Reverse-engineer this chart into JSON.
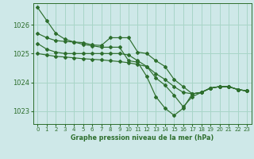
{
  "background_color": "#cee8e8",
  "grid_color": "#a8d5c8",
  "line_color": "#2d6e2d",
  "title": "Graphe pression niveau de la mer (hPa)",
  "xlim": [
    -0.5,
    23.5
  ],
  "ylim": [
    1022.55,
    1026.75
  ],
  "yticks": [
    1023,
    1024,
    1025,
    1026
  ],
  "xticks": [
    0,
    1,
    2,
    3,
    4,
    5,
    6,
    7,
    8,
    9,
    10,
    11,
    12,
    13,
    14,
    15,
    16,
    17,
    18,
    19,
    20,
    21,
    22,
    23
  ],
  "series": [
    [
      1026.6,
      1026.15,
      1025.7,
      1025.5,
      1025.4,
      1025.32,
      1025.27,
      1025.22,
      1025.22,
      1025.22,
      1024.75,
      1024.7,
      1024.2,
      1023.5,
      1023.1,
      1022.85,
      1023.1,
      1023.6,
      1023.65,
      1023.8,
      1023.85,
      1023.85,
      1023.75,
      1023.7
    ],
    [
      1025.7,
      1025.55,
      1025.45,
      1025.42,
      1025.4,
      1025.38,
      1025.3,
      1025.28,
      1025.55,
      1025.55,
      1025.55,
      1025.05,
      1025.0,
      1024.75,
      1024.55,
      1024.1,
      1023.85,
      1023.6,
      1023.65,
      1023.8,
      1023.85,
      1023.85,
      1023.75,
      1023.7
    ],
    [
      1025.35,
      1025.15,
      1025.05,
      1025.0,
      1025.0,
      1025.0,
      1025.0,
      1025.0,
      1025.0,
      1025.0,
      1024.95,
      1024.75,
      1024.55,
      1024.15,
      1023.9,
      1023.55,
      1023.15,
      1023.5,
      1023.65,
      1023.8,
      1023.85,
      1023.85,
      1023.75,
      1023.7
    ],
    [
      1025.0,
      1024.95,
      1024.9,
      1024.88,
      1024.85,
      1024.82,
      1024.8,
      1024.78,
      1024.75,
      1024.72,
      1024.68,
      1024.62,
      1024.55,
      1024.3,
      1024.1,
      1023.85,
      1023.65,
      1023.6,
      1023.65,
      1023.8,
      1023.85,
      1023.85,
      1023.75,
      1023.7
    ]
  ]
}
